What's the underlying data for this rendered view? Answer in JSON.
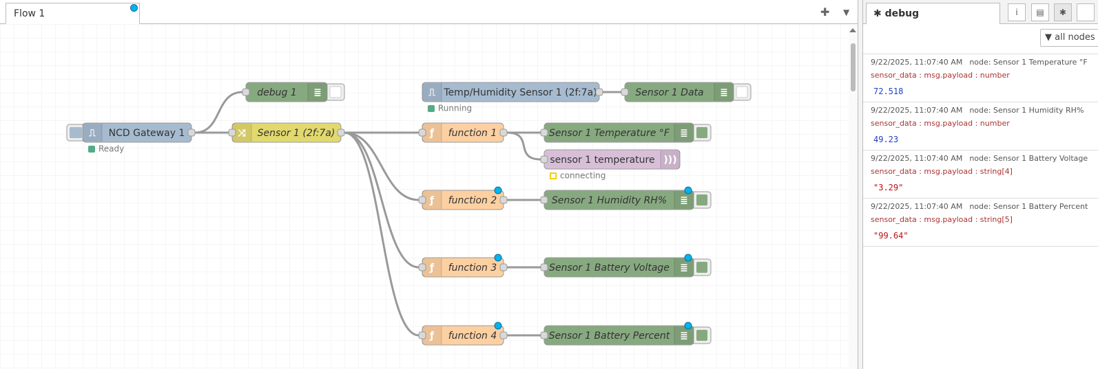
{
  "tab": {
    "title": "Flow 1"
  },
  "nodes": [
    {
      "label": "debug 1"
    },
    {
      "label": "NCD Gateway 1",
      "status": "Ready"
    },
    {
      "label": "Sensor 1 (2f:7a)"
    },
    {
      "label": "Temp/Humidity Sensor 1 (2f:7a)",
      "status": "Running"
    },
    {
      "label": "Sensor 1 Data"
    },
    {
      "label": "function 1"
    },
    {
      "label": "Sensor 1 Temperature °F"
    },
    {
      "label": "sensor 1 temperature",
      "status": "connecting"
    },
    {
      "label": "function 2"
    },
    {
      "label": "Sensor 1 Humidity RH%"
    },
    {
      "label": "function 3"
    },
    {
      "label": "Sensor 1 Battery Voltage"
    },
    {
      "label": "function 4"
    },
    {
      "label": "Sensor 1 Battery Percent"
    }
  ],
  "sidebar": {
    "tab": "debug",
    "filter": "all nodes",
    "messages": [
      {
        "time": "9/22/2025, 11:07:40 AM",
        "node": "node: Sensor 1 Temperature °F",
        "meta": "sensor_data : msg.payload : number",
        "value": 72.518
      },
      {
        "time": "9/22/2025, 11:07:40 AM",
        "node": "node: Sensor 1 Humidity RH%",
        "meta": "sensor_data : msg.payload : number",
        "value": 49.23
      },
      {
        "time": "9/22/2025, 11:07:40 AM",
        "node": "node: Sensor 1 Battery Voltage",
        "meta": "sensor_data : msg.payload : string[4]",
        "value": "\"3.29\""
      },
      {
        "time": "9/22/2025, 11:07:40 AM",
        "node": "node: Sensor 1 Battery Percent",
        "meta": "sensor_data : msg.payload : string[5]",
        "value": "\"99.64\""
      }
    ]
  }
}
